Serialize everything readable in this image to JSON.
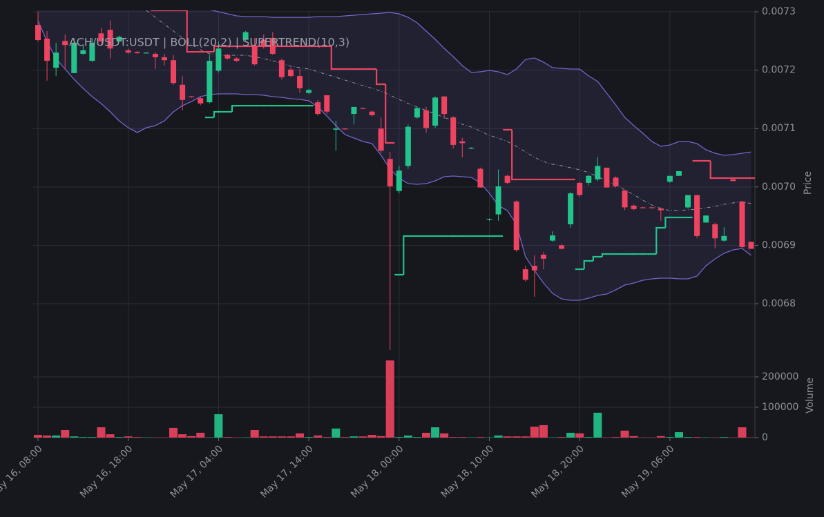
{
  "chart_data": {
    "type": "candlestick",
    "title": "ACH/USDT:USDT | BOLL(20,2) | SUPERTREND(10,3)",
    "ylabel": "Price",
    "categories": [
      "May 16, 08:00",
      null,
      null,
      null,
      null,
      null,
      null,
      null,
      null,
      null,
      "May 16, 18:00",
      null,
      null,
      null,
      null,
      null,
      null,
      null,
      null,
      null,
      "May 17, 04:00",
      null,
      null,
      null,
      null,
      null,
      null,
      null,
      null,
      null,
      "May 17, 14:00",
      null,
      null,
      null,
      null,
      null,
      null,
      null,
      null,
      null,
      "May 18, 00:00",
      null,
      null,
      null,
      null,
      null,
      null,
      null,
      null,
      null,
      "May 18, 10:00",
      null,
      null,
      null,
      null,
      null,
      null,
      null,
      null,
      null,
      "May 18, 20:00",
      null,
      null,
      null,
      null,
      null,
      null,
      null,
      null,
      null,
      "May 19, 06:00",
      null,
      null,
      null,
      null,
      null,
      null,
      null,
      null,
      null
    ],
    "open": [
      0.0072775,
      0.007254,
      0.007204,
      0.00725,
      0.007195,
      0.007228,
      0.007216,
      0.007263,
      0.007269,
      0.007249,
      0.007234,
      0.007231,
      0.00723,
      0.007228,
      0.007222,
      0.007217,
      0.007175,
      0.007155,
      0.007152,
      0.007145,
      0.007199,
      0.007226,
      0.00722,
      0.007252,
      0.00724,
      0.007252,
      0.007255,
      0.007217,
      0.007201,
      0.00719,
      0.007161,
      0.007145,
      0.007157,
      0.007098,
      0.0071,
      0.007125,
      0.007135,
      0.007129,
      0.0071,
      0.007048,
      0.006993,
      0.007036,
      0.007119,
      0.007131,
      0.007105,
      0.007155,
      0.007119,
      0.007078,
      0.007066,
      0.007031,
      0.006944,
      0.006953,
      0.007019,
      0.006975,
      0.006859,
      0.006865,
      0.006884,
      0.006908,
      0.0069,
      0.006936,
      0.007007,
      0.007007,
      0.007013,
      0.007033,
      0.007016,
      0.006994,
      0.006968,
      0.006965,
      0.006965,
      0.006963,
      0.007009,
      0.007019,
      0.006965,
      0.006986,
      0.006939,
      0.006936,
      0.006908,
      0.007013,
      0.006975,
      0.006906
    ],
    "high": [
      0.0073,
      0.007267,
      0.007247,
      0.007261,
      0.007255,
      0.007243,
      0.007255,
      0.007273,
      0.007285,
      0.007259,
      0.007237,
      0.007233,
      0.007231,
      0.007231,
      0.007228,
      0.007226,
      0.00719,
      0.007156,
      0.007154,
      0.007226,
      0.007249,
      0.007228,
      0.007222,
      0.007267,
      0.007255,
      0.007261,
      0.007265,
      0.00722,
      0.007204,
      0.007202,
      0.007168,
      0.007149,
      0.007157,
      0.007113,
      0.007101,
      0.007137,
      0.007136,
      0.007131,
      0.007119,
      0.00706,
      0.007036,
      0.007107,
      0.007137,
      0.007137,
      0.007155,
      0.007155,
      0.007121,
      0.007084,
      0.007068,
      0.007033,
      0.006946,
      0.00703,
      0.007021,
      0.006977,
      0.006865,
      0.006883,
      0.006889,
      0.006924,
      0.006902,
      0.006991,
      0.007009,
      0.007021,
      0.007051,
      0.007033,
      0.007018,
      0.006994,
      0.00697,
      0.006966,
      0.006966,
      0.006965,
      0.007019,
      0.007027,
      0.006986,
      0.006986,
      0.006951,
      0.006939,
      0.006931,
      0.007014,
      0.006975,
      0.006906
    ],
    "low": [
      0.007249,
      0.007182,
      0.00719,
      0.007202,
      0.007195,
      0.007226,
      0.007214,
      0.007243,
      0.00722,
      0.007249,
      0.007228,
      0.007228,
      0.007229,
      0.007202,
      0.007208,
      0.007175,
      0.007131,
      0.007153,
      0.00714,
      0.007143,
      0.007196,
      0.007218,
      0.007214,
      0.007249,
      0.007208,
      0.007237,
      0.007226,
      0.007184,
      0.007188,
      0.007161,
      0.007159,
      0.007122,
      0.007125,
      0.007062,
      0.007098,
      0.007107,
      0.007133,
      0.007121,
      0.007058,
      0.006721,
      0.006989,
      0.007031,
      0.007117,
      0.007093,
      0.007101,
      0.007117,
      0.007066,
      0.007051,
      0.007065,
      0.006999,
      0.006942,
      0.006942,
      0.007005,
      0.006889,
      0.006838,
      0.006812,
      0.006859,
      0.006906,
      0.006893,
      0.00693,
      0.006983,
      0.007003,
      0.00701,
      0.006999,
      0.006999,
      0.00696,
      0.00696,
      0.006964,
      0.006964,
      0.006942,
      0.007007,
      0.007019,
      0.006963,
      0.006912,
      0.006939,
      0.006895,
      0.006906,
      0.00701,
      0.006895,
      0.006894
    ],
    "close": [
      0.0072515,
      0.007216,
      0.00723,
      0.007243,
      0.007247,
      0.007234,
      0.007247,
      0.007249,
      0.007237,
      0.007257,
      0.00723,
      0.007229,
      0.00723,
      0.007222,
      0.007217,
      0.007178,
      0.007149,
      0.007154,
      0.007143,
      0.007216,
      0.007237,
      0.00722,
      0.007216,
      0.007265,
      0.00721,
      0.00724,
      0.007228,
      0.007188,
      0.00719,
      0.007169,
      0.007166,
      0.007125,
      0.007129,
      0.0071,
      0.007099,
      0.007137,
      0.007134,
      0.007123,
      0.007062,
      0.007001,
      0.007028,
      0.007103,
      0.007135,
      0.007101,
      0.007153,
      0.007125,
      0.007072,
      0.007075,
      0.007067,
      0.006999,
      0.006945,
      0.007001,
      0.007007,
      0.006892,
      0.006841,
      0.006857,
      0.006877,
      0.006917,
      0.006894,
      0.006989,
      0.006986,
      0.007019,
      0.007036,
      0.006999,
      0.007001,
      0.006965,
      0.006962,
      0.006964,
      0.006964,
      0.00696,
      0.007019,
      0.007027,
      0.006986,
      0.006916,
      0.006951,
      0.006912,
      0.006916,
      0.00701,
      0.006897,
      0.006894
    ],
    "up_color": "#22c48c",
    "down_color": "#ee4461",
    "ylim": [
      0.0067078,
      0.0073024
    ],
    "yticks": [
      0.0068,
      0.0069,
      {
        "value": 0.007,
        "label": "0.0070"
      },
      0.0071,
      0.0072,
      0.0073
    ],
    "grid": true,
    "bollinger": {
      "color": "#7465cc",
      "middle_color": "#9aa0a6",
      "upper": [
        0.0073319,
        0.0073378,
        0.0073414,
        0.0073437,
        0.0073437,
        0.0073437,
        0.0073414,
        0.0073378,
        0.0073343,
        0.0073319,
        0.0073296,
        0.007326,
        0.0073201,
        0.0073165,
        0.007313,
        0.0073106,
        0.0073083,
        0.0073071,
        0.0073059,
        0.0073035,
        0.0073,
        0.0072965,
        0.0072929,
        0.0072917,
        0.0072917,
        0.0072917,
        0.0072905,
        0.0072905,
        0.0072905,
        0.0072905,
        0.0072905,
        0.0072917,
        0.0072917,
        0.0072917,
        0.0072929,
        0.0072941,
        0.0072953,
        0.0072965,
        0.0072976,
        0.0072988,
        0.0072965,
        0.0072905,
        0.0072811,
        0.0072669,
        0.0072527,
        0.0072373,
        0.0072232,
        0.0072078,
        0.007196,
        0.0071972,
        0.0071995,
        0.0071972,
        0.0071924,
        0.0072019,
        0.0072184,
        0.0072208,
        0.0072137,
        0.0072043,
        0.0072031,
        0.0072019,
        0.0072019,
        0.0071901,
        0.0071806,
        0.0071605,
        0.0071404,
        0.0071191,
        0.007105,
        0.007092,
        0.0070778,
        0.0070695,
        0.0070719,
        0.0070778,
        0.0070778,
        0.0070742,
        0.0070636,
        0.0070577,
        0.0070541,
        0.0070553,
        0.0070577,
        0.00706
      ],
      "middle": [
        null,
        null,
        null,
        null,
        null,
        null,
        null,
        null,
        null,
        null,
        null,
        null,
        0.0073024,
        0.0072905,
        0.0072787,
        0.0072669,
        0.0072551,
        0.0072433,
        0.007235,
        0.0072279,
        0.0072255,
        0.0072255,
        0.0072255,
        0.0072255,
        0.0072232,
        0.0072196,
        0.0072161,
        0.0072114,
        0.0072066,
        0.0072043,
        0.0072019,
        0.0071972,
        0.0071924,
        0.0071877,
        0.007183,
        0.0071783,
        0.0071735,
        0.0071688,
        0.0071641,
        0.007157,
        0.0071499,
        0.0071428,
        0.0071369,
        0.007131,
        0.0071251,
        0.0071191,
        0.0071132,
        0.0071073,
        0.0071026,
        0.0070955,
        0.0070884,
        0.0070837,
        0.0070778,
        0.0070695,
        0.0070601,
        0.0070506,
        0.0070435,
        0.0070388,
        0.0070364,
        0.0070329,
        0.0070293,
        0.0070246,
        0.0070175,
        0.0070104,
        0.0070033,
        0.006995,
        0.0069868,
        0.0069773,
        0.006969,
        0.0069631,
        0.0069596,
        0.0069596,
        0.0069608,
        0.006962,
        0.0069643,
        0.0069667,
        0.0069702,
        0.0069726,
        0.006975,
        0.0069714
      ],
      "lower": [
        0.0072846,
        0.0072492,
        0.0072196,
        0.0072019,
        0.0071842,
        0.0071688,
        0.0071546,
        0.0071428,
        0.0071286,
        0.0071132,
        0.0071014,
        0.0070932,
        0.0071014,
        0.007105,
        0.0071132,
        0.0071286,
        0.0071392,
        0.0071463,
        0.0071546,
        0.0071582,
        0.0071594,
        0.0071594,
        0.0071594,
        0.0071582,
        0.0071582,
        0.007157,
        0.0071546,
        0.0071534,
        0.0071511,
        0.0071499,
        0.0071475,
        0.0071369,
        0.0071215,
        0.007105,
        0.0070896,
        0.0070837,
        0.0070778,
        0.0070742,
        0.0070541,
        0.0070305,
        0.0070151,
        0.0070057,
        0.0070045,
        0.0070057,
        0.0070104,
        0.0070175,
        0.0070187,
        0.0070175,
        0.0070163,
        0.0070069,
        0.0069891,
        0.0069679,
        0.0069596,
        0.006936,
        0.0068804,
        0.0068568,
        0.0068355,
        0.0068177,
        0.0068083,
        0.0068059,
        0.0068059,
        0.0068095,
        0.0068142,
        0.0068166,
        0.0068237,
        0.0068319,
        0.0068355,
        0.0068402,
        0.0068426,
        0.0068437,
        0.0068437,
        0.0068426,
        0.0068426,
        0.0068473,
        0.006865,
        0.0068768,
        0.0068863,
        0.0068922,
        0.0068946,
        0.0068827
      ]
    },
    "supertrend": {
      "upper_color": "#ee4461",
      "lower_color": "#22c48c",
      "upper": [
        null,
        null,
        null,
        null,
        null,
        null,
        null,
        null,
        null,
        null,
        null,
        null,
        null,
        0.0073024,
        0.0073024,
        0.0073024,
        0.0073024,
        0.0072314,
        0.0072314,
        0.0072314,
        0.0072409,
        0.0072409,
        0.0072409,
        0.0072409,
        0.0072409,
        0.0072409,
        0.0072409,
        0.0072409,
        0.0072409,
        0.0072409,
        0.0072409,
        0.0072409,
        0.0072409,
        0.0072019,
        0.0072019,
        0.0072019,
        0.0072019,
        0.0072019,
        0.0071759,
        0.0070754,
        null,
        null,
        null,
        null,
        null,
        null,
        null,
        null,
        null,
        null,
        null,
        null,
        0.0070979,
        0.0070128,
        0.0070128,
        0.0070128,
        0.0070128,
        0.0070128,
        0.0070128,
        0.0070128,
        null,
        null,
        null,
        null,
        null,
        null,
        null,
        null,
        null,
        null,
        null,
        null,
        null,
        0.0070447,
        0.0070447,
        0.0070151,
        0.0070151,
        0.0070151,
        0.0070151,
        0.0070151
      ],
      "lower": [
        null,
        null,
        null,
        null,
        null,
        null,
        null,
        null,
        null,
        null,
        null,
        null,
        null,
        null,
        null,
        null,
        null,
        null,
        null,
        0.0071191,
        0.0071286,
        0.0071286,
        0.0071392,
        0.0071392,
        0.0071392,
        0.0071392,
        0.0071392,
        0.0071392,
        0.0071392,
        0.0071392,
        0.0071392,
        null,
        null,
        null,
        null,
        null,
        null,
        null,
        null,
        null,
        0.0068497,
        0.0069158,
        0.0069158,
        0.0069158,
        0.0069158,
        0.0069158,
        0.0069158,
        0.0069158,
        0.0069158,
        0.0069158,
        0.0069158,
        0.0069158,
        null,
        null,
        null,
        null,
        null,
        null,
        null,
        null,
        0.0068591,
        0.0068733,
        0.0068804,
        0.0068851,
        0.0068851,
        0.0068851,
        0.0068851,
        0.0068851,
        0.0068851,
        0.00693,
        0.0069478,
        0.0069478,
        0.0069478,
        null,
        null,
        null,
        null,
        null,
        null,
        null
      ]
    },
    "volume": {
      "ylabel": "Volume",
      "values": [
        9000,
        7000,
        7000,
        25000,
        4000,
        2000,
        2000,
        34000,
        11000,
        2000,
        4000,
        2000,
        1000,
        1000,
        1000,
        32000,
        11000,
        5000,
        16000,
        1000,
        77000,
        2000,
        1000,
        1000,
        25000,
        4000,
        4000,
        4000,
        4000,
        14000,
        2000,
        7000,
        2000,
        30000,
        2000,
        4000,
        4000,
        9000,
        5000,
        254000,
        2000,
        7000,
        2000,
        16000,
        34000,
        14000,
        2000,
        2000,
        1000,
        2000,
        1000,
        7000,
        4000,
        4000,
        4000,
        36000,
        41000,
        1000,
        2000,
        16000,
        14000,
        2000,
        82000,
        1000,
        2000,
        23000,
        5000,
        1000,
        1000,
        5000,
        2000,
        18000,
        2000,
        2000,
        1000,
        1000,
        2000,
        1000,
        34000,
        1000
      ],
      "ylim": [
        0,
        259000
      ],
      "yticks": [
        0,
        100000,
        200000
      ]
    }
  }
}
